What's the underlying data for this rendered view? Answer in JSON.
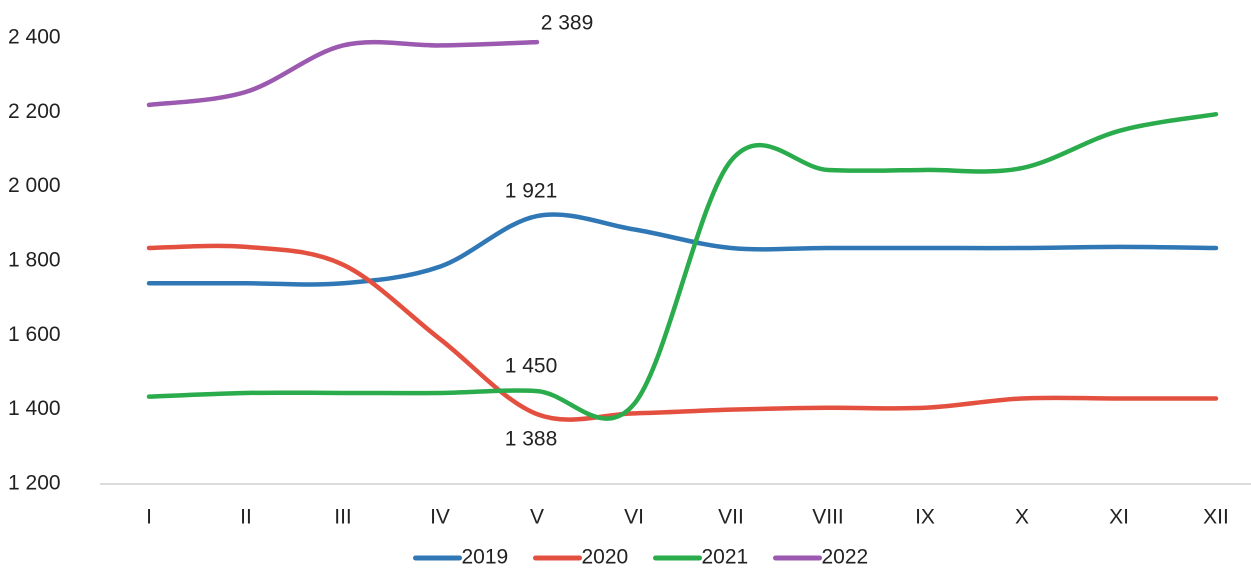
{
  "chart_data": {
    "type": "line",
    "categories": [
      "I",
      "II",
      "III",
      "IV",
      "V",
      "VI",
      "VII",
      "VIII",
      "IX",
      "X",
      "XI",
      "XII"
    ],
    "series": [
      {
        "name": "2019",
        "color": "#2f78b5",
        "values": [
          1740,
          1740,
          1740,
          1785,
          1921,
          1885,
          1835,
          1835,
          1835,
          1835,
          1838,
          1835
        ],
        "value_labels": [
          null,
          null,
          null,
          null,
          "1 921",
          null,
          null,
          null,
          null,
          null,
          null,
          null
        ]
      },
      {
        "name": "2020",
        "color": "#e4503f",
        "values": [
          1835,
          1838,
          1790,
          1590,
          1388,
          1390,
          1400,
          1405,
          1405,
          1430,
          1430,
          1430
        ],
        "value_labels": [
          null,
          null,
          null,
          null,
          "1 388",
          null,
          null,
          null,
          null,
          null,
          null,
          null
        ]
      },
      {
        "name": "2021",
        "color": "#2aab4c",
        "values": [
          1435,
          1445,
          1445,
          1445,
          1450,
          1415,
          2070,
          2045,
          2045,
          2050,
          2150,
          2195
        ],
        "value_labels": [
          null,
          null,
          null,
          null,
          "1 450",
          null,
          null,
          null,
          null,
          null,
          null,
          null
        ]
      },
      {
        "name": "2022",
        "color": "#9b59b0",
        "values": [
          2220,
          2255,
          2380,
          2380,
          2389,
          null,
          null,
          null,
          null,
          null,
          null,
          null
        ],
        "value_labels": [
          null,
          null,
          null,
          null,
          "2 389",
          null,
          null,
          null,
          null,
          null,
          null,
          null
        ]
      }
    ],
    "ylim": [
      1200,
      2400
    ],
    "yticks": [
      {
        "value": 1200,
        "label": "1 200"
      },
      {
        "value": 1400,
        "label": "1 400"
      },
      {
        "value": 1600,
        "label": "1 600"
      },
      {
        "value": 1800,
        "label": "1 800"
      },
      {
        "value": 2000,
        "label": "2 000"
      },
      {
        "value": 2200,
        "label": "2 200"
      },
      {
        "value": 2400,
        "label": "2 400"
      }
    ],
    "legend": "bottom"
  }
}
